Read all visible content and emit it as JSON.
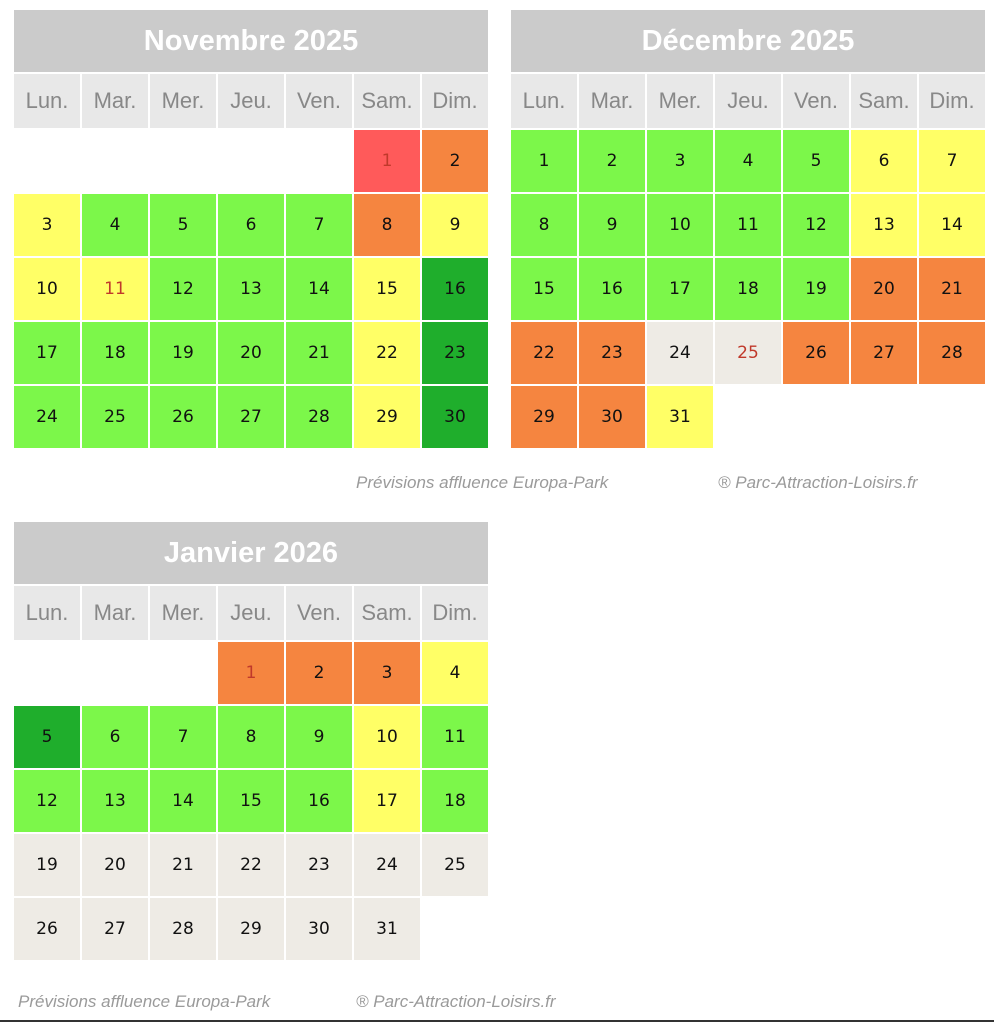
{
  "weekdays": [
    "Lun.",
    "Mar.",
    "Mer.",
    "Jeu.",
    "Ven.",
    "Sam.",
    "Dim."
  ],
  "legend_colors": {
    "red": "#ff5a5a",
    "orange": "#f58540",
    "yellow": "#ffff66",
    "lgreen": "#7cf74a",
    "dgreen": "#1fae2c",
    "closed": "#eeebe5"
  },
  "calendars": [
    {
      "title": "Novembre 2025",
      "start_offset": 5,
      "days": [
        {
          "d": "1",
          "c": "red",
          "h": true
        },
        {
          "d": "2",
          "c": "orange"
        },
        {
          "d": "3",
          "c": "yellow"
        },
        {
          "d": "4",
          "c": "lgreen"
        },
        {
          "d": "5",
          "c": "lgreen"
        },
        {
          "d": "6",
          "c": "lgreen"
        },
        {
          "d": "7",
          "c": "lgreen"
        },
        {
          "d": "8",
          "c": "orange"
        },
        {
          "d": "9",
          "c": "yellow"
        },
        {
          "d": "10",
          "c": "yellow"
        },
        {
          "d": "11",
          "c": "yellow",
          "h": true
        },
        {
          "d": "12",
          "c": "lgreen"
        },
        {
          "d": "13",
          "c": "lgreen"
        },
        {
          "d": "14",
          "c": "lgreen"
        },
        {
          "d": "15",
          "c": "yellow"
        },
        {
          "d": "16",
          "c": "dgreen"
        },
        {
          "d": "17",
          "c": "lgreen"
        },
        {
          "d": "18",
          "c": "lgreen"
        },
        {
          "d": "19",
          "c": "lgreen"
        },
        {
          "d": "20",
          "c": "lgreen"
        },
        {
          "d": "21",
          "c": "lgreen"
        },
        {
          "d": "22",
          "c": "yellow"
        },
        {
          "d": "23",
          "c": "dgreen"
        },
        {
          "d": "24",
          "c": "lgreen"
        },
        {
          "d": "25",
          "c": "lgreen"
        },
        {
          "d": "26",
          "c": "lgreen"
        },
        {
          "d": "27",
          "c": "lgreen"
        },
        {
          "d": "28",
          "c": "lgreen"
        },
        {
          "d": "29",
          "c": "yellow"
        },
        {
          "d": "30",
          "c": "dgreen"
        }
      ]
    },
    {
      "title": "Décembre 2025",
      "start_offset": 0,
      "days": [
        {
          "d": "1",
          "c": "lgreen"
        },
        {
          "d": "2",
          "c": "lgreen"
        },
        {
          "d": "3",
          "c": "lgreen"
        },
        {
          "d": "4",
          "c": "lgreen"
        },
        {
          "d": "5",
          "c": "lgreen"
        },
        {
          "d": "6",
          "c": "yellow"
        },
        {
          "d": "7",
          "c": "yellow"
        },
        {
          "d": "8",
          "c": "lgreen"
        },
        {
          "d": "9",
          "c": "lgreen"
        },
        {
          "d": "10",
          "c": "lgreen"
        },
        {
          "d": "11",
          "c": "lgreen"
        },
        {
          "d": "12",
          "c": "lgreen"
        },
        {
          "d": "13",
          "c": "yellow"
        },
        {
          "d": "14",
          "c": "yellow"
        },
        {
          "d": "15",
          "c": "lgreen"
        },
        {
          "d": "16",
          "c": "lgreen"
        },
        {
          "d": "17",
          "c": "lgreen"
        },
        {
          "d": "18",
          "c": "lgreen"
        },
        {
          "d": "19",
          "c": "lgreen"
        },
        {
          "d": "20",
          "c": "orange"
        },
        {
          "d": "21",
          "c": "orange"
        },
        {
          "d": "22",
          "c": "orange"
        },
        {
          "d": "23",
          "c": "orange"
        },
        {
          "d": "24",
          "c": "closed"
        },
        {
          "d": "25",
          "c": "closed",
          "h": true
        },
        {
          "d": "26",
          "c": "orange"
        },
        {
          "d": "27",
          "c": "orange"
        },
        {
          "d": "28",
          "c": "orange"
        },
        {
          "d": "29",
          "c": "orange"
        },
        {
          "d": "30",
          "c": "orange"
        },
        {
          "d": "31",
          "c": "yellow"
        }
      ]
    },
    {
      "title": "Janvier 2026",
      "start_offset": 3,
      "days": [
        {
          "d": "1",
          "c": "orange",
          "h": true
        },
        {
          "d": "2",
          "c": "orange"
        },
        {
          "d": "3",
          "c": "orange"
        },
        {
          "d": "4",
          "c": "yellow"
        },
        {
          "d": "5",
          "c": "dgreen"
        },
        {
          "d": "6",
          "c": "lgreen"
        },
        {
          "d": "7",
          "c": "lgreen"
        },
        {
          "d": "8",
          "c": "lgreen"
        },
        {
          "d": "9",
          "c": "lgreen"
        },
        {
          "d": "10",
          "c": "yellow"
        },
        {
          "d": "11",
          "c": "lgreen"
        },
        {
          "d": "12",
          "c": "lgreen"
        },
        {
          "d": "13",
          "c": "lgreen"
        },
        {
          "d": "14",
          "c": "lgreen"
        },
        {
          "d": "15",
          "c": "lgreen"
        },
        {
          "d": "16",
          "c": "lgreen"
        },
        {
          "d": "17",
          "c": "yellow"
        },
        {
          "d": "18",
          "c": "lgreen"
        },
        {
          "d": "19",
          "c": "closed"
        },
        {
          "d": "20",
          "c": "closed"
        },
        {
          "d": "21",
          "c": "closed"
        },
        {
          "d": "22",
          "c": "closed"
        },
        {
          "d": "23",
          "c": "closed"
        },
        {
          "d": "24",
          "c": "closed"
        },
        {
          "d": "25",
          "c": "closed"
        },
        {
          "d": "26",
          "c": "closed"
        },
        {
          "d": "27",
          "c": "closed"
        },
        {
          "d": "28",
          "c": "closed"
        },
        {
          "d": "29",
          "c": "closed"
        },
        {
          "d": "30",
          "c": "closed"
        },
        {
          "d": "31",
          "c": "closed"
        }
      ]
    }
  ],
  "credits": {
    "top_left": "Prévisions affluence Europa-Park",
    "top_right": "® Parc-Attraction-Loisirs.fr",
    "bottom_left": "Prévisions affluence Europa-Park",
    "bottom_right": "® Parc-Attraction-Loisirs.fr"
  }
}
